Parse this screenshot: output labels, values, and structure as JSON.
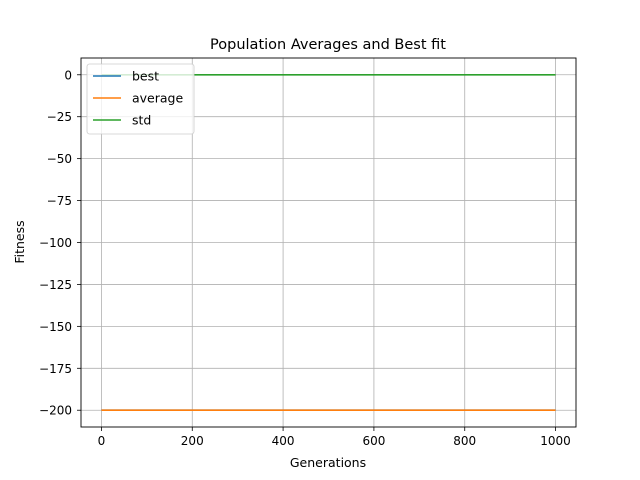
{
  "chart_data": {
    "type": "line",
    "title": "Population Averages and Best fit",
    "xlabel": "Generations",
    "ylabel": "Fitness",
    "xlim": [
      -45,
      1045
    ],
    "ylim": [
      -210,
      10
    ],
    "xticks": [
      0,
      200,
      400,
      600,
      800,
      1000
    ],
    "xtick_labels": [
      "0",
      "200",
      "400",
      "600",
      "800",
      "1000"
    ],
    "yticks": [
      0,
      -25,
      -50,
      -75,
      -100,
      -125,
      -150,
      -175,
      -200
    ],
    "ytick_labels": [
      "0",
      "−25",
      "−50",
      "−75",
      "−100",
      "−125",
      "−150",
      "−175",
      "−200"
    ],
    "grid": true,
    "legend_position": "upper-left",
    "series": [
      {
        "name": "best",
        "color": "#1f77b4",
        "x": [
          0,
          1000
        ],
        "y": [
          -200,
          -200
        ]
      },
      {
        "name": "average",
        "color": "#ff7f0e",
        "x": [
          0,
          1000
        ],
        "y": [
          -200,
          -200
        ]
      },
      {
        "name": "std",
        "color": "#2ca02c",
        "x": [
          0,
          1000
        ],
        "y": [
          0,
          0
        ]
      }
    ]
  }
}
